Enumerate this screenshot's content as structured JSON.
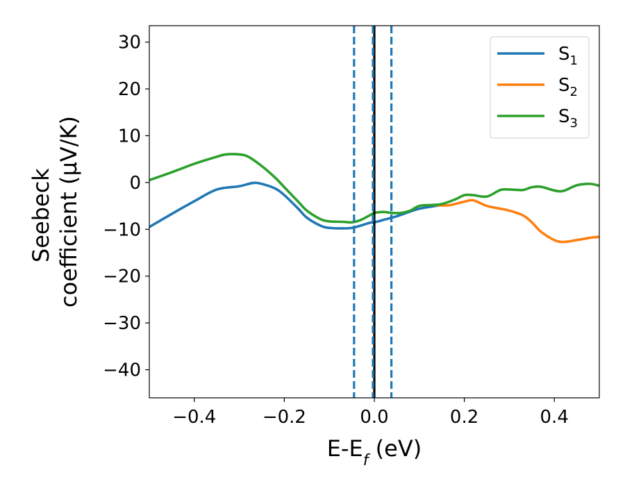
{
  "chart_data": {
    "type": "line",
    "xlabel": "E-E_f (eV)",
    "ylabel_line1": "Seebeck",
    "ylabel_line2": "coefficient  (μV/K)",
    "xlim": [
      -0.5,
      0.5
    ],
    "ylim": [
      -46,
      33.5
    ],
    "xticks": [
      -0.4,
      -0.2,
      0.0,
      0.2,
      0.4
    ],
    "xtick_labels": [
      "−0.4",
      "−0.2",
      "0.0",
      "0.2",
      "0.4"
    ],
    "yticks": [
      30,
      20,
      10,
      0,
      -10,
      -20,
      -30,
      -40
    ],
    "ytick_labels": [
      "30",
      "20",
      "10",
      "0",
      "−10",
      "−20",
      "−30",
      "−40"
    ],
    "grid": false,
    "legend_position": "top-right",
    "series": [
      {
        "name": "S",
        "sub": "1",
        "color": "#1f77b4",
        "x": [
          -0.5,
          -0.45,
          -0.4,
          -0.35,
          -0.3,
          -0.27,
          -0.25,
          -0.22,
          -0.2,
          -0.17,
          -0.15,
          -0.12,
          -0.1,
          -0.07,
          -0.05,
          -0.03,
          -0.01,
          0.0,
          0.02,
          0.05,
          0.08,
          0.1,
          0.13,
          0.15
        ],
        "y": [
          -9.5,
          -6.7,
          -4.0,
          -1.5,
          -0.8,
          -0.1,
          -0.3,
          -1.3,
          -2.7,
          -5.5,
          -7.5,
          -9.2,
          -9.7,
          -9.8,
          -9.7,
          -9.2,
          -8.6,
          -8.5,
          -8.0,
          -7.2,
          -6.2,
          -5.6,
          -5.1,
          -4.8
        ]
      },
      {
        "name": "S",
        "sub": "2",
        "color": "#ff7f0e",
        "x": [
          0.13,
          0.15,
          0.17,
          0.2,
          0.22,
          0.25,
          0.28,
          0.3,
          0.33,
          0.35,
          0.37,
          0.4,
          0.42,
          0.45,
          0.48,
          0.5
        ],
        "y": [
          -4.8,
          -4.9,
          -4.8,
          -4.1,
          -3.8,
          -5.0,
          -5.6,
          -6.0,
          -7.0,
          -8.5,
          -10.5,
          -12.3,
          -12.7,
          -12.3,
          -11.8,
          -11.6
        ]
      },
      {
        "name": "S",
        "sub": "3",
        "color": "#2ca02c",
        "x": [
          -0.5,
          -0.45,
          -0.4,
          -0.35,
          -0.33,
          -0.3,
          -0.28,
          -0.25,
          -0.22,
          -0.2,
          -0.17,
          -0.15,
          -0.12,
          -0.1,
          -0.07,
          -0.05,
          -0.03,
          -0.01,
          0.0,
          0.02,
          0.04,
          0.06,
          0.08,
          0.1,
          0.13,
          0.15,
          0.18,
          0.2,
          0.22,
          0.25,
          0.28,
          0.3,
          0.33,
          0.35,
          0.37,
          0.4,
          0.42,
          0.45,
          0.48,
          0.5
        ],
        "y": [
          0.5,
          2.2,
          4.0,
          5.5,
          6.0,
          6.0,
          5.5,
          3.5,
          1.0,
          -1.0,
          -4.0,
          -6.0,
          -7.8,
          -8.3,
          -8.4,
          -8.5,
          -8.0,
          -7.0,
          -6.5,
          -6.3,
          -6.5,
          -6.5,
          -6.0,
          -5.0,
          -4.8,
          -4.6,
          -3.6,
          -2.7,
          -2.7,
          -3.0,
          -1.6,
          -1.5,
          -1.6,
          -1.0,
          -0.9,
          -1.7,
          -1.8,
          -0.6,
          -0.3,
          -0.7
        ]
      }
    ],
    "vlines": [
      {
        "x": -0.045,
        "style": "dashed",
        "color": "#1f77b4"
      },
      {
        "x": 0.038,
        "style": "dashed",
        "color": "#1f77b4"
      },
      {
        "x": 0.0,
        "style": "solid",
        "color": "#000000"
      },
      {
        "x": -0.003,
        "style": "dashed",
        "color": "#1f77b4"
      }
    ]
  }
}
